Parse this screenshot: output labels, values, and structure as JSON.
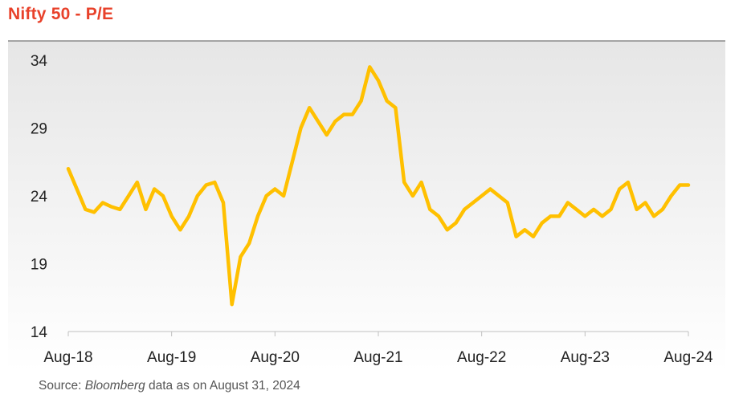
{
  "title": "Nifty 50 - P/E",
  "source": {
    "prefix": "Source: ",
    "name": "Bloomberg",
    "suffix": " data as on August 31, 2024"
  },
  "colors": {
    "title": "#e8412a",
    "line": "#ffc000",
    "plot_top": "#e6e6e6",
    "plot_bottom": "#ffffff"
  },
  "chart_data": {
    "type": "line",
    "title": "Nifty 50 - P/E",
    "xlabel": "",
    "ylabel": "",
    "x_tick_labels": [
      "Aug-18",
      "Aug-19",
      "Aug-20",
      "Aug-21",
      "Aug-22",
      "Aug-23",
      "Aug-24"
    ],
    "y_ticks": [
      14,
      19,
      24,
      29,
      34
    ],
    "ylim": [
      14,
      34
    ],
    "xlim": [
      "2018-08",
      "2024-08"
    ],
    "grid": false,
    "series": [
      {
        "x": [
          "2018-08",
          "2018-09",
          "2018-10",
          "2018-11",
          "2018-12",
          "2019-01",
          "2019-02",
          "2019-03",
          "2019-04",
          "2019-05",
          "2019-06",
          "2019-07",
          "2019-08",
          "2019-09",
          "2019-10",
          "2019-11",
          "2019-12",
          "2020-01",
          "2020-02",
          "2020-03",
          "2020-04",
          "2020-05",
          "2020-06",
          "2020-07",
          "2020-08",
          "2020-09",
          "2020-10",
          "2020-11",
          "2020-12",
          "2021-01",
          "2021-02",
          "2021-03",
          "2021-04",
          "2021-05",
          "2021-06",
          "2021-07",
          "2021-08",
          "2021-09",
          "2021-10",
          "2021-11",
          "2021-12",
          "2022-01",
          "2022-02",
          "2022-03",
          "2022-04",
          "2022-05",
          "2022-06",
          "2022-07",
          "2022-08",
          "2022-09",
          "2022-10",
          "2022-11",
          "2022-12",
          "2023-01",
          "2023-02",
          "2023-03",
          "2023-04",
          "2023-05",
          "2023-06",
          "2023-07",
          "2023-08",
          "2023-09",
          "2023-10",
          "2023-11",
          "2023-12",
          "2024-01",
          "2024-02",
          "2024-03",
          "2024-04",
          "2024-05",
          "2024-06",
          "2024-07",
          "2024-08"
        ],
        "values": [
          26.0,
          24.5,
          23.0,
          22.8,
          23.5,
          23.2,
          23.0,
          24.0,
          25.0,
          23.0,
          24.5,
          24.0,
          22.5,
          21.5,
          22.5,
          24.0,
          24.8,
          25.0,
          23.5,
          16.0,
          19.5,
          20.5,
          22.5,
          24.0,
          24.5,
          24.0,
          26.5,
          29.0,
          30.5,
          29.5,
          28.5,
          29.5,
          30.0,
          30.0,
          31.0,
          33.5,
          32.5,
          31.0,
          30.5,
          25.0,
          24.0,
          25.0,
          23.0,
          22.5,
          21.5,
          22.0,
          23.0,
          23.5,
          24.0,
          24.5,
          24.0,
          23.5,
          21.0,
          21.5,
          21.0,
          22.0,
          22.5,
          22.5,
          23.5,
          23.0,
          22.5,
          23.0,
          22.5,
          23.0,
          24.5,
          25.0,
          23.0,
          23.5,
          22.5,
          23.0,
          24.0,
          24.8,
          24.8
        ]
      }
    ]
  }
}
